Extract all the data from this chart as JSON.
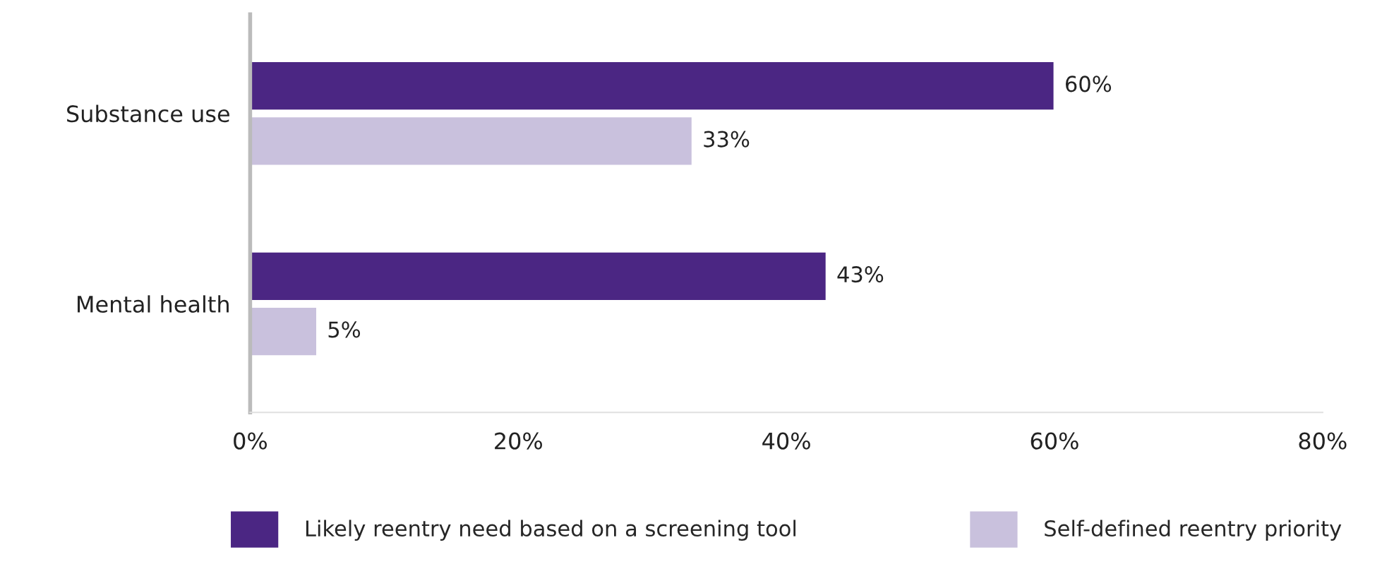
{
  "chart_data": {
    "type": "bar",
    "orientation": "horizontal",
    "categories": [
      "Substance use",
      "Mental health"
    ],
    "series": [
      {
        "name": "Likely reentry need based on a screening tool",
        "color": "#4b2683",
        "values": [
          60,
          43
        ],
        "value_labels": [
          "60%",
          "43%"
        ]
      },
      {
        "name": "Self-defined reentry priority",
        "color": "#c9c1dd",
        "values": [
          33,
          5
        ],
        "value_labels": [
          "33%",
          "5%"
        ]
      }
    ],
    "xlim": [
      0,
      80
    ],
    "xticks": [
      {
        "value": 0,
        "label": "0%"
      },
      {
        "value": 20,
        "label": "20%"
      },
      {
        "value": 40,
        "label": "40%"
      },
      {
        "value": 60,
        "label": "60%"
      },
      {
        "value": 80,
        "label": "80%"
      }
    ],
    "grid": false,
    "legend": "bottom"
  }
}
